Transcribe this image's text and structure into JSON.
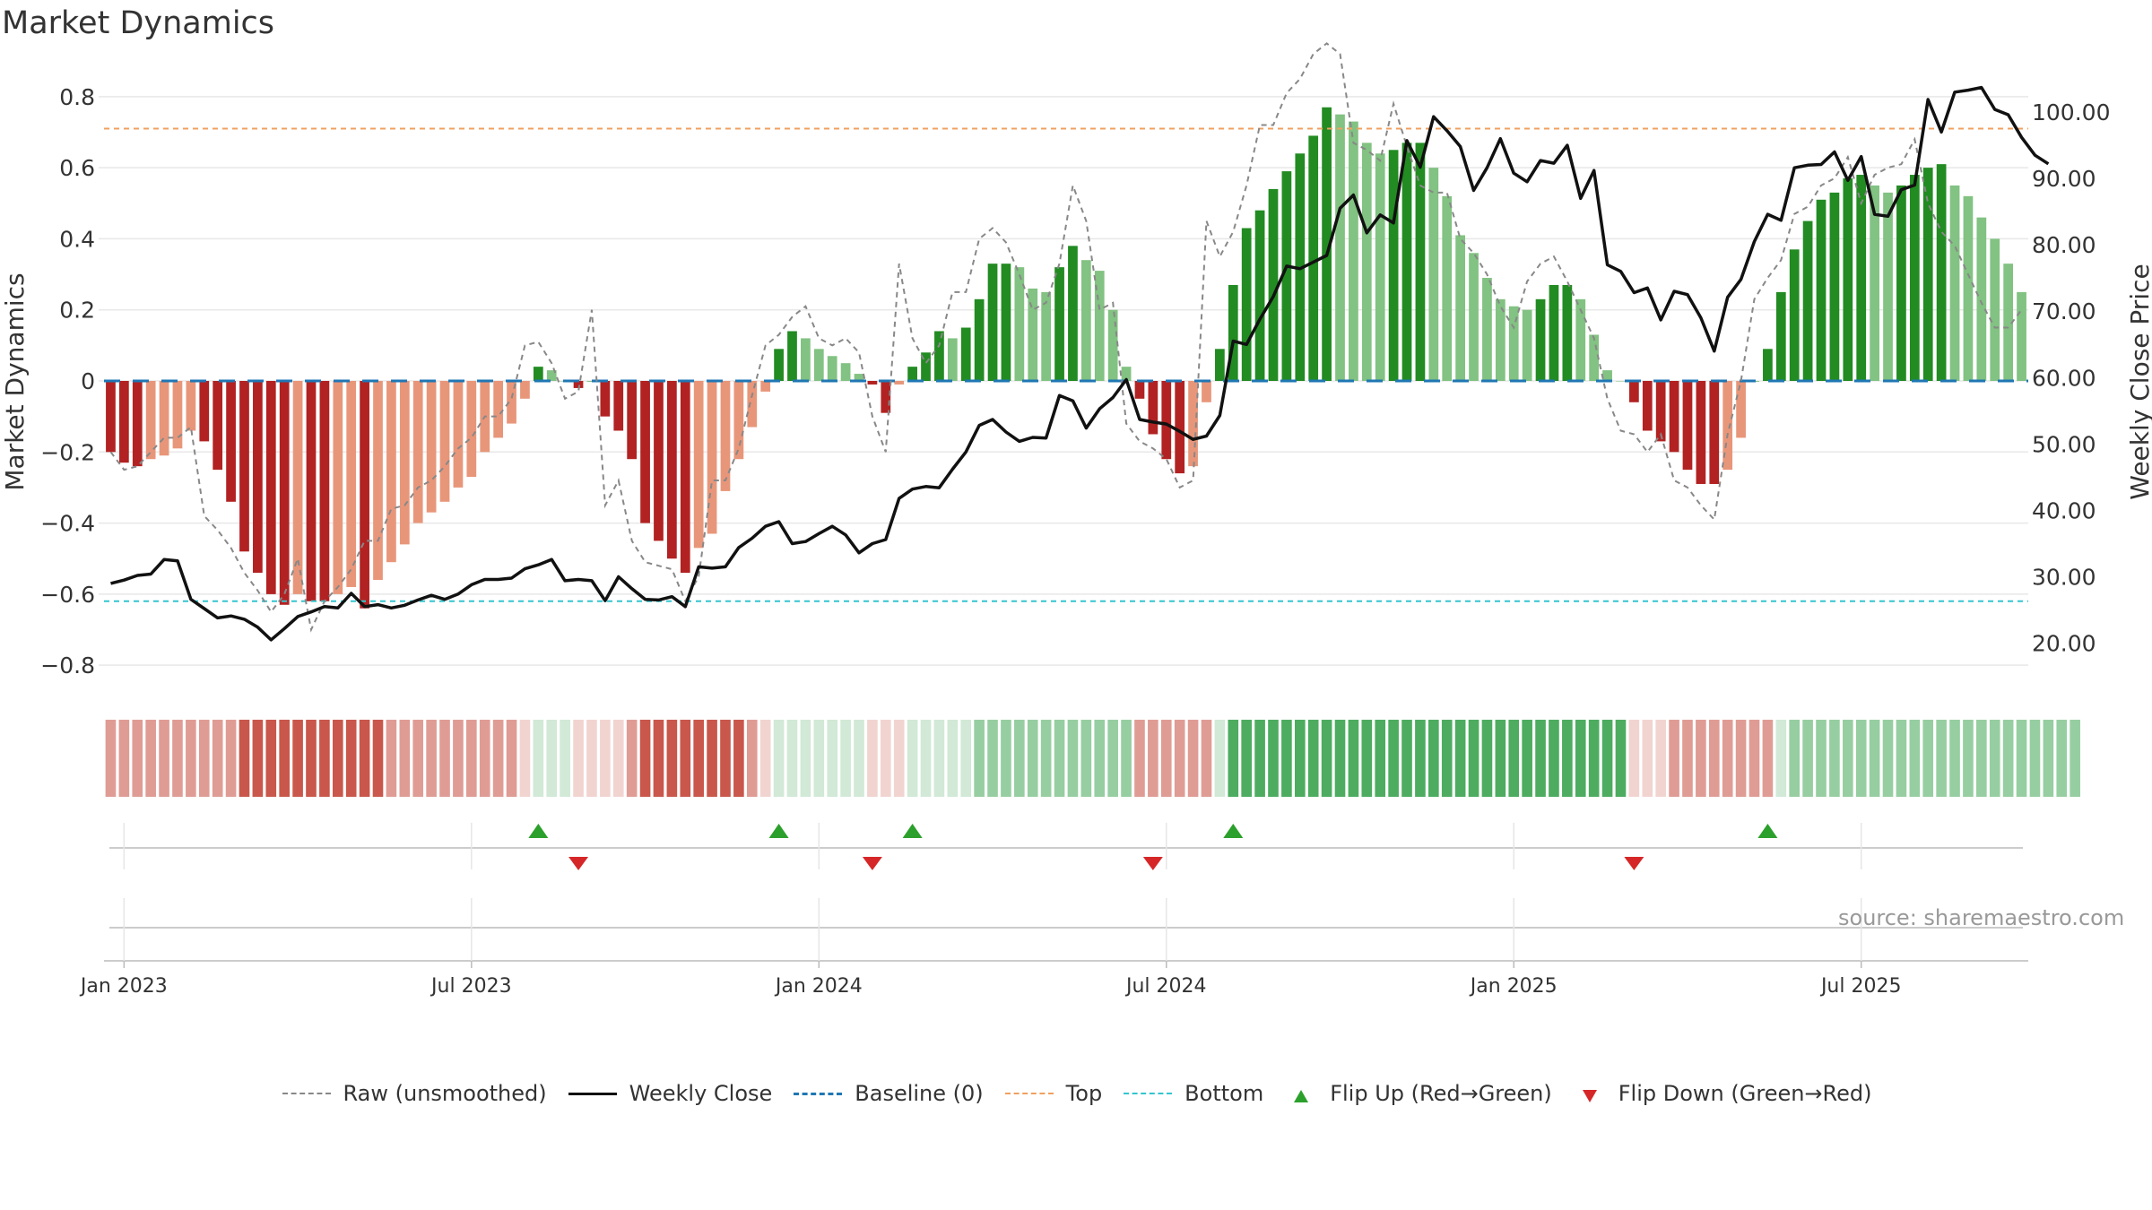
{
  "chart_data": [
    {
      "type": "bar",
      "title": "Market Dynamics",
      "ylabel": "Market Dynamics",
      "y2label": "Weekly Close Price",
      "ylim": [
        -0.85,
        0.85
      ],
      "y2lim": [
        14.0,
        105.0
      ],
      "yticks": [
        "−0.8",
        "−0.6",
        "−0.4",
        "−0.2",
        "0",
        "0.2",
        "0.4",
        "0.6",
        "0.8"
      ],
      "ytick_values": [
        -0.8,
        -0.6,
        -0.4,
        -0.2,
        0,
        0.2,
        0.4,
        0.6,
        0.8
      ],
      "y2ticks": [
        "20.00",
        "30.00",
        "40.00",
        "50.00",
        "60.00",
        "70.00",
        "80.00",
        "90.00",
        "100.00"
      ],
      "y2tick_values": [
        20,
        30,
        40,
        50,
        60,
        70,
        80,
        90,
        100
      ],
      "xticks": [
        "Jan 2023",
        "Jul 2023",
        "Jan 2024",
        "Jul 2024",
        "Jan 2025",
        "Jul 2025"
      ],
      "xtick_weeks": [
        1,
        27,
        53,
        79,
        105,
        131
      ],
      "x_start": "2022-12-30",
      "x_end": "2025-10-03",
      "top_level": 0.71,
      "bottom_level": -0.62,
      "baseline": 0,
      "bars": {
        "values": [
          -0.2,
          -0.23,
          -0.24,
          -0.22,
          -0.21,
          -0.19,
          -0.14,
          -0.17,
          -0.25,
          -0.34,
          -0.48,
          -0.54,
          -0.6,
          -0.63,
          -0.6,
          -0.62,
          -0.62,
          -0.6,
          -0.58,
          -0.64,
          -0.56,
          -0.51,
          -0.46,
          -0.4,
          -0.37,
          -0.34,
          -0.3,
          -0.27,
          -0.2,
          -0.16,
          -0.12,
          -0.05,
          0.04,
          0.03,
          0.0,
          -0.02,
          0.0,
          -0.1,
          -0.14,
          -0.22,
          -0.4,
          -0.45,
          -0.5,
          -0.54,
          -0.47,
          -0.43,
          -0.31,
          -0.22,
          -0.13,
          -0.03,
          0.09,
          0.14,
          0.12,
          0.09,
          0.07,
          0.05,
          0.02,
          -0.01,
          -0.09,
          -0.01,
          0.04,
          0.08,
          0.14,
          0.12,
          0.15,
          0.23,
          0.33,
          0.33,
          0.32,
          0.26,
          0.25,
          0.32,
          0.38,
          0.34,
          0.31,
          0.2,
          0.04,
          -0.05,
          -0.15,
          -0.22,
          -0.26,
          -0.24,
          -0.06,
          0.09,
          0.27,
          0.43,
          0.48,
          0.54,
          0.59,
          0.64,
          0.69,
          0.77,
          0.75,
          0.73,
          0.67,
          0.64,
          0.65,
          0.67,
          0.67,
          0.6,
          0.52,
          0.41,
          0.36,
          0.29,
          0.23,
          0.21,
          0.2,
          0.23,
          0.27,
          0.27,
          0.23,
          0.13,
          0.03,
          0.0,
          -0.06,
          -0.14,
          -0.17,
          -0.2,
          -0.25,
          -0.29,
          -0.29,
          -0.25,
          -0.16,
          0.0,
          0.09,
          0.25,
          0.37,
          0.45,
          0.51,
          0.53,
          0.57,
          0.58,
          0.55,
          0.53,
          0.55,
          0.58,
          0.6,
          0.61,
          0.55,
          0.52,
          0.46,
          0.4,
          0.33,
          0.25
        ],
        "colors": {
          "strong_red": "#b22222",
          "light_red": "#e8967a",
          "strong_green": "#228b22",
          "light_green": "#82c282"
        }
      },
      "raw": [
        -0.2,
        -0.25,
        -0.24,
        -0.2,
        -0.16,
        -0.16,
        -0.13,
        -0.38,
        -0.42,
        -0.47,
        -0.54,
        -0.59,
        -0.65,
        -0.6,
        -0.5,
        -0.7,
        -0.62,
        -0.58,
        -0.53,
        -0.45,
        -0.45,
        -0.36,
        -0.35,
        -0.3,
        -0.28,
        -0.24,
        -0.19,
        -0.16,
        -0.1,
        -0.1,
        -0.05,
        0.1,
        0.11,
        0.05,
        -0.05,
        -0.03,
        0.2,
        -0.35,
        -0.28,
        -0.45,
        -0.51,
        -0.52,
        -0.53,
        -0.62,
        -0.55,
        -0.28,
        -0.28,
        -0.19,
        -0.04,
        0.1,
        0.13,
        0.18,
        0.21,
        0.12,
        0.1,
        0.12,
        0.08,
        -0.1,
        -0.2,
        0.33,
        0.12,
        0.05,
        0.1,
        0.25,
        0.25,
        0.4,
        0.43,
        0.39,
        0.3,
        0.2,
        0.22,
        0.33,
        0.55,
        0.45,
        0.2,
        0.22,
        -0.12,
        -0.17,
        -0.19,
        -0.22,
        -0.3,
        -0.28,
        0.45,
        0.35,
        0.42,
        0.55,
        0.72,
        0.72,
        0.81,
        0.85,
        0.92,
        0.95,
        0.92,
        0.67,
        0.65,
        0.62,
        0.78,
        0.66,
        0.55,
        0.53,
        0.53,
        0.4,
        0.36,
        0.3,
        0.21,
        0.15,
        0.28,
        0.33,
        0.35,
        0.28,
        0.2,
        0.12,
        -0.05,
        -0.14,
        -0.15,
        -0.2,
        -0.15,
        -0.28,
        -0.3,
        -0.35,
        -0.39,
        -0.15,
        0.0,
        0.23,
        0.29,
        0.34,
        0.47,
        0.49,
        0.55,
        0.57,
        0.63,
        0.5,
        0.58,
        0.6,
        0.61,
        0.68,
        0.5,
        0.42,
        0.38,
        0.3,
        0.22,
        0.15,
        0.15,
        0.2
      ],
      "weekly_close": [
        29.0,
        29.5,
        30.2,
        30.4,
        32.6,
        32.4,
        26.6,
        25.2,
        23.8,
        24.1,
        23.6,
        22.4,
        20.5,
        22.2,
        24.0,
        24.7,
        25.5,
        25.3,
        27.5,
        25.5,
        25.8,
        25.3,
        25.7,
        26.5,
        27.2,
        26.6,
        27.4,
        28.8,
        29.6,
        29.6,
        29.8,
        31.2,
        31.8,
        32.6,
        29.4,
        29.6,
        29.4,
        26.4,
        30.0,
        28.2,
        26.6,
        26.5,
        27.0,
        25.5,
        31.5,
        31.3,
        31.5,
        34.4,
        35.8,
        37.6,
        38.3,
        35.0,
        35.3,
        36.5,
        37.6,
        36.3,
        33.6,
        35.0,
        35.6,
        41.8,
        43.2,
        43.6,
        43.4,
        46.2,
        48.8,
        52.8,
        53.7,
        51.8,
        50.4,
        51.0,
        50.9,
        57.3,
        56.5,
        52.4,
        55.3,
        57.0,
        59.7,
        53.7,
        53.3,
        53.0,
        51.9,
        50.7,
        51.2,
        54.3,
        65.5,
        65.0,
        68.8,
        72.2,
        76.8,
        76.4,
        77.4,
        78.4,
        85.5,
        87.5,
        81.8,
        84.5,
        83.3,
        95.7,
        91.7,
        99.3,
        97.2,
        94.8,
        88.2,
        91.6,
        96.0,
        90.8,
        89.5,
        92.7,
        92.3,
        95.0,
        87.0,
        91.2,
        77.0,
        76.0,
        72.8,
        73.5,
        68.7,
        73.0,
        72.5,
        69.0,
        64.0,
        72.1,
        74.8,
        80.5,
        84.6,
        83.7,
        91.6,
        92.0,
        92.1,
        94.0,
        89.7,
        93.3,
        84.6,
        84.3,
        88.3,
        89.0,
        101.9,
        97.0,
        103.0,
        103.3,
        103.7,
        100.4,
        99.6,
        96.2,
        93.5,
        92.2
      ],
      "regime_strip": [
        -2,
        -2,
        -2,
        -2,
        -2,
        -2,
        -2,
        -2,
        -2,
        -2,
        -3,
        -3,
        -3,
        -3,
        -3,
        -3,
        -3,
        -3,
        -3,
        -3,
        -3,
        -2,
        -2,
        -2,
        -2,
        -2,
        -2,
        -2,
        -2,
        -2,
        -2,
        -1,
        1,
        1,
        1,
        -1,
        -1,
        -1,
        -1,
        -2,
        -3,
        -3,
        -3,
        -3,
        -3,
        -3,
        -3,
        -3,
        -2,
        -1,
        1,
        1,
        1,
        1,
        1,
        1,
        1,
        -1,
        -1,
        -1,
        1,
        1,
        1,
        1,
        1,
        2,
        2,
        2,
        2,
        2,
        2,
        2,
        2,
        2,
        2,
        2,
        2,
        -2,
        -2,
        -2,
        -2,
        -2,
        -2,
        1,
        3,
        3,
        3,
        3,
        3,
        3,
        3,
        3,
        3,
        3,
        3,
        3,
        3,
        3,
        3,
        3,
        3,
        3,
        3,
        3,
        3,
        3,
        3,
        3,
        3,
        3,
        3,
        3,
        3,
        3,
        -1,
        -1,
        -1,
        -2,
        -2,
        -2,
        -2,
        -2,
        -2,
        -2,
        -2,
        1,
        2,
        2,
        2,
        2,
        2,
        2,
        2,
        2,
        2,
        2,
        2,
        2,
        2,
        2,
        2,
        2,
        2,
        2,
        2,
        2,
        2,
        2
      ],
      "flip_up_weeks": [
        32,
        50,
        60,
        84,
        124
      ],
      "flip_down_weeks": [
        35,
        57,
        78,
        114
      ],
      "legend": [
        "Raw (unsmoothed)",
        "Weekly Close",
        "Baseline (0)",
        "Top",
        "Bottom",
        "Flip Up (Red→Green)",
        "Flip Down (Green→Red)"
      ],
      "legend_placement": "bottom",
      "grid": true
    }
  ],
  "source_note": "source: sharemaestro.com",
  "colors": {
    "raw": "#888888",
    "weekly_close": "#111111",
    "baseline": "#1f77b4",
    "top": "#f0a060",
    "bottom": "#33c5cf",
    "flip_up": "#2ca02c",
    "flip_down": "#d62728",
    "strip_red": "#c0392b",
    "strip_green": "#2e9d44",
    "grid": "#e8e8e8",
    "text": "#333333"
  }
}
